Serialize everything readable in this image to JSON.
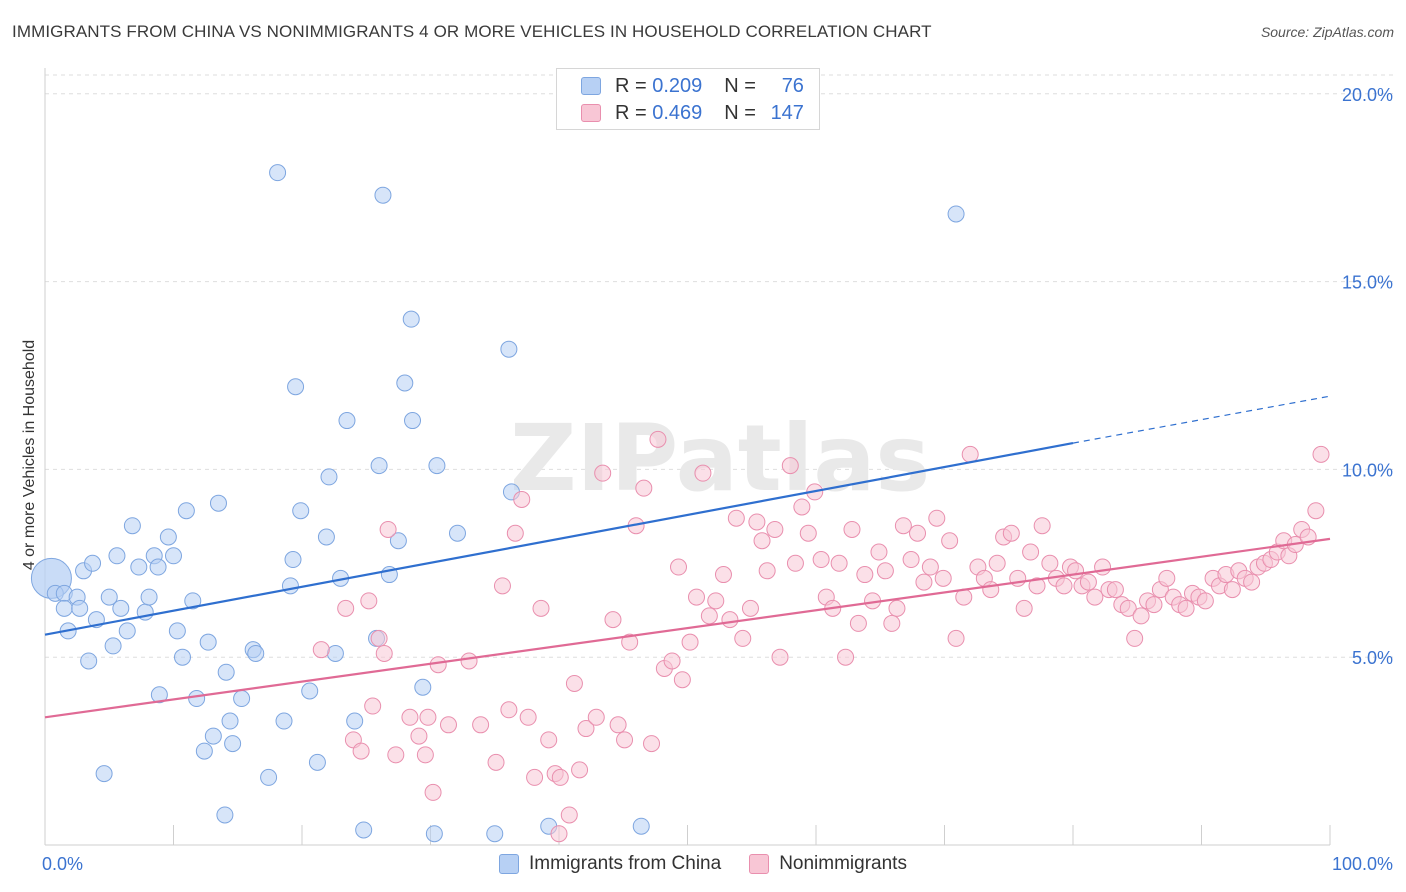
{
  "title": "IMMIGRANTS FROM CHINA VS NONIMMIGRANTS 4 OR MORE VEHICLES IN HOUSEHOLD CORRELATION CHART",
  "source": "Source: ZipAtlas.com",
  "legend": {
    "r_label": "R =",
    "n_label": "N =",
    "rows": [
      {
        "r": "0.209",
        "n": "76",
        "color": "#b7d0f4",
        "border": "#7ea6e0"
      },
      {
        "r": "0.469",
        "n": "147",
        "color": "#f8c6d5",
        "border": "#e98fae"
      }
    ]
  },
  "colors": {
    "blue_fill": "#b7d0f4",
    "blue_edge": "#7ea6e0",
    "blue_line": "#2f6fcf",
    "pink_fill": "#f8c6d5",
    "pink_edge": "#e98fae",
    "pink_line": "#e06a95",
    "axis_label": "#3b73d0",
    "grid": "#dedede"
  },
  "chart_data": {
    "type": "scatter",
    "title": "IMMIGRANTS FROM CHINA VS NONIMMIGRANTS 4 OR MORE VEHICLES IN HOUSEHOLD CORRELATION CHART",
    "xlabel": "",
    "ylabel": "4 or more Vehicles in Household",
    "xlim": [
      0,
      100
    ],
    "ylim": [
      0,
      20.5
    ],
    "x_tick_labels": [
      {
        "value": 0,
        "label": "0.0%"
      },
      {
        "value": 100,
        "label": "100.0%"
      }
    ],
    "y_tick_labels": [
      {
        "value": 5,
        "label": "5.0%"
      },
      {
        "value": 10,
        "label": "10.0%"
      },
      {
        "value": 15,
        "label": "15.0%"
      },
      {
        "value": 20,
        "label": "20.0%"
      }
    ],
    "watermark": "ZIPatlas",
    "series": [
      {
        "name": "Immigrants from China",
        "r": 0.209,
        "n": 76,
        "trend": {
          "x0": 0,
          "y0": 5.6,
          "x1": 80,
          "y1": 10.7,
          "dash_to_x": 100,
          "dash_to_y": 11.95
        },
        "points": [
          {
            "x": 0.5,
            "y": 7.1,
            "big": true
          },
          {
            "x": 0.8,
            "y": 6.7
          },
          {
            "x": 1.5,
            "y": 6.7
          },
          {
            "x": 2.5,
            "y": 6.6
          },
          {
            "x": 1.5,
            "y": 6.3
          },
          {
            "x": 2.7,
            "y": 6.3
          },
          {
            "x": 1.8,
            "y": 5.7
          },
          {
            "x": 3.0,
            "y": 7.3
          },
          {
            "x": 3.7,
            "y": 7.5
          },
          {
            "x": 4.0,
            "y": 6.0
          },
          {
            "x": 3.4,
            "y": 4.9
          },
          {
            "x": 4.6,
            "y": 1.9
          },
          {
            "x": 5.0,
            "y": 6.6
          },
          {
            "x": 5.6,
            "y": 7.7
          },
          {
            "x": 5.9,
            "y": 6.3
          },
          {
            "x": 5.3,
            "y": 5.3
          },
          {
            "x": 6.4,
            "y": 5.7
          },
          {
            "x": 6.8,
            "y": 8.5
          },
          {
            "x": 7.3,
            "y": 7.4
          },
          {
            "x": 7.8,
            "y": 6.2
          },
          {
            "x": 8.1,
            "y": 6.6
          },
          {
            "x": 8.5,
            "y": 7.7
          },
          {
            "x": 8.8,
            "y": 7.4
          },
          {
            "x": 9.6,
            "y": 8.2
          },
          {
            "x": 10.0,
            "y": 7.7
          },
          {
            "x": 10.3,
            "y": 5.7
          },
          {
            "x": 8.9,
            "y": 4.0
          },
          {
            "x": 10.7,
            "y": 5.0
          },
          {
            "x": 11.0,
            "y": 8.9
          },
          {
            "x": 11.5,
            "y": 6.5
          },
          {
            "x": 11.8,
            "y": 3.9
          },
          {
            "x": 12.7,
            "y": 5.4
          },
          {
            "x": 13.1,
            "y": 2.9
          },
          {
            "x": 13.5,
            "y": 9.1
          },
          {
            "x": 14.1,
            "y": 4.6
          },
          {
            "x": 12.4,
            "y": 2.5
          },
          {
            "x": 14.4,
            "y": 3.3
          },
          {
            "x": 14.6,
            "y": 2.7
          },
          {
            "x": 15.3,
            "y": 3.9
          },
          {
            "x": 16.2,
            "y": 5.2
          },
          {
            "x": 16.4,
            "y": 5.1
          },
          {
            "x": 14.0,
            "y": 0.8
          },
          {
            "x": 17.4,
            "y": 1.8
          },
          {
            "x": 18.1,
            "y": 17.9
          },
          {
            "x": 18.6,
            "y": 3.3
          },
          {
            "x": 19.1,
            "y": 6.9
          },
          {
            "x": 19.3,
            "y": 7.6
          },
          {
            "x": 19.5,
            "y": 12.2
          },
          {
            "x": 19.9,
            "y": 8.9
          },
          {
            "x": 20.6,
            "y": 4.1
          },
          {
            "x": 21.2,
            "y": 2.2
          },
          {
            "x": 21.9,
            "y": 8.2
          },
          {
            "x": 22.1,
            "y": 9.8
          },
          {
            "x": 22.6,
            "y": 5.1
          },
          {
            "x": 23.0,
            "y": 7.1
          },
          {
            "x": 23.5,
            "y": 11.3
          },
          {
            "x": 24.1,
            "y": 3.3
          },
          {
            "x": 24.8,
            "y": 0.4
          },
          {
            "x": 25.8,
            "y": 5.5
          },
          {
            "x": 26.0,
            "y": 10.1
          },
          {
            "x": 26.3,
            "y": 17.3
          },
          {
            "x": 26.8,
            "y": 7.2
          },
          {
            "x": 27.5,
            "y": 8.1
          },
          {
            "x": 28.0,
            "y": 12.3
          },
          {
            "x": 28.5,
            "y": 14.0
          },
          {
            "x": 28.6,
            "y": 11.3
          },
          {
            "x": 29.4,
            "y": 4.2
          },
          {
            "x": 30.3,
            "y": 0.3
          },
          {
            "x": 30.5,
            "y": 10.1
          },
          {
            "x": 32.1,
            "y": 8.3
          },
          {
            "x": 35.0,
            "y": 0.3
          },
          {
            "x": 36.1,
            "y": 13.2
          },
          {
            "x": 36.3,
            "y": 9.4
          },
          {
            "x": 39.2,
            "y": 0.5
          },
          {
            "x": 46.4,
            "y": 0.5
          },
          {
            "x": 70.9,
            "y": 16.8
          }
        ]
      },
      {
        "name": "Nonimmigrants",
        "r": 0.469,
        "n": 147,
        "trend": {
          "x0": 0,
          "y0": 3.4,
          "x1": 100,
          "y1": 8.15
        },
        "points": [
          {
            "x": 21.5,
            "y": 5.2
          },
          {
            "x": 23.4,
            "y": 6.3
          },
          {
            "x": 24.0,
            "y": 2.8
          },
          {
            "x": 24.6,
            "y": 2.5
          },
          {
            "x": 25.2,
            "y": 6.5
          },
          {
            "x": 25.5,
            "y": 3.7
          },
          {
            "x": 26.0,
            "y": 5.5
          },
          {
            "x": 26.4,
            "y": 5.1
          },
          {
            "x": 26.7,
            "y": 8.4
          },
          {
            "x": 27.3,
            "y": 2.4
          },
          {
            "x": 28.4,
            "y": 3.4
          },
          {
            "x": 29.1,
            "y": 2.9
          },
          {
            "x": 29.6,
            "y": 2.4
          },
          {
            "x": 30.2,
            "y": 1.4
          },
          {
            "x": 30.6,
            "y": 4.8
          },
          {
            "x": 31.4,
            "y": 3.2
          },
          {
            "x": 33.0,
            "y": 4.9
          },
          {
            "x": 33.9,
            "y": 3.2
          },
          {
            "x": 35.1,
            "y": 2.2
          },
          {
            "x": 35.6,
            "y": 6.9
          },
          {
            "x": 36.1,
            "y": 3.6
          },
          {
            "x": 36.6,
            "y": 8.3
          },
          {
            "x": 37.1,
            "y": 9.2
          },
          {
            "x": 37.6,
            "y": 3.4
          },
          {
            "x": 38.1,
            "y": 1.8
          },
          {
            "x": 38.6,
            "y": 6.3
          },
          {
            "x": 39.2,
            "y": 2.8
          },
          {
            "x": 39.7,
            "y": 1.9
          },
          {
            "x": 40.0,
            "y": 0.3
          },
          {
            "x": 40.1,
            "y": 1.8
          },
          {
            "x": 40.8,
            "y": 0.8
          },
          {
            "x": 41.2,
            "y": 4.3
          },
          {
            "x": 41.6,
            "y": 2.0
          },
          {
            "x": 42.1,
            "y": 3.1
          },
          {
            "x": 42.9,
            "y": 3.4
          },
          {
            "x": 43.4,
            "y": 9.9
          },
          {
            "x": 44.2,
            "y": 6.0
          },
          {
            "x": 44.6,
            "y": 3.2
          },
          {
            "x": 45.1,
            "y": 2.8
          },
          {
            "x": 45.5,
            "y": 5.4
          },
          {
            "x": 46.0,
            "y": 8.5
          },
          {
            "x": 46.6,
            "y": 9.5
          },
          {
            "x": 47.2,
            "y": 2.7
          },
          {
            "x": 47.7,
            "y": 10.8
          },
          {
            "x": 48.2,
            "y": 4.7
          },
          {
            "x": 48.8,
            "y": 4.9
          },
          {
            "x": 49.3,
            "y": 7.4
          },
          {
            "x": 49.6,
            "y": 4.4
          },
          {
            "x": 50.2,
            "y": 5.4
          },
          {
            "x": 50.7,
            "y": 6.6
          },
          {
            "x": 51.2,
            "y": 9.9
          },
          {
            "x": 51.7,
            "y": 6.1
          },
          {
            "x": 52.2,
            "y": 6.5
          },
          {
            "x": 52.8,
            "y": 7.2
          },
          {
            "x": 53.3,
            "y": 6.0
          },
          {
            "x": 53.8,
            "y": 8.7
          },
          {
            "x": 54.3,
            "y": 5.5
          },
          {
            "x": 54.9,
            "y": 6.3
          },
          {
            "x": 55.4,
            "y": 8.6
          },
          {
            "x": 55.8,
            "y": 8.1
          },
          {
            "x": 56.2,
            "y": 7.3
          },
          {
            "x": 56.8,
            "y": 8.4
          },
          {
            "x": 57.2,
            "y": 5.0
          },
          {
            "x": 58.0,
            "y": 10.1
          },
          {
            "x": 58.4,
            "y": 7.5
          },
          {
            "x": 58.9,
            "y": 9.0
          },
          {
            "x": 59.4,
            "y": 8.3
          },
          {
            "x": 59.9,
            "y": 9.4
          },
          {
            "x": 60.4,
            "y": 7.6
          },
          {
            "x": 60.8,
            "y": 6.6
          },
          {
            "x": 61.3,
            "y": 6.3
          },
          {
            "x": 61.8,
            "y": 7.5
          },
          {
            "x": 62.3,
            "y": 5.0
          },
          {
            "x": 62.8,
            "y": 8.4
          },
          {
            "x": 63.3,
            "y": 5.9
          },
          {
            "x": 63.8,
            "y": 7.2
          },
          {
            "x": 64.4,
            "y": 6.5
          },
          {
            "x": 64.9,
            "y": 7.8
          },
          {
            "x": 65.4,
            "y": 7.3
          },
          {
            "x": 65.9,
            "y": 5.9
          },
          {
            "x": 66.3,
            "y": 6.3
          },
          {
            "x": 66.8,
            "y": 8.5
          },
          {
            "x": 67.4,
            "y": 7.6
          },
          {
            "x": 67.9,
            "y": 8.3
          },
          {
            "x": 68.4,
            "y": 7.0
          },
          {
            "x": 68.9,
            "y": 7.4
          },
          {
            "x": 69.4,
            "y": 8.7
          },
          {
            "x": 69.9,
            "y": 7.1
          },
          {
            "x": 70.4,
            "y": 8.1
          },
          {
            "x": 70.9,
            "y": 5.5
          },
          {
            "x": 71.5,
            "y": 6.6
          },
          {
            "x": 72.0,
            "y": 10.4
          },
          {
            "x": 72.6,
            "y": 7.4
          },
          {
            "x": 73.1,
            "y": 7.1
          },
          {
            "x": 73.6,
            "y": 6.8
          },
          {
            "x": 74.1,
            "y": 7.5
          },
          {
            "x": 74.6,
            "y": 8.2
          },
          {
            "x": 75.2,
            "y": 8.3
          },
          {
            "x": 75.7,
            "y": 7.1
          },
          {
            "x": 76.2,
            "y": 6.3
          },
          {
            "x": 76.7,
            "y": 7.8
          },
          {
            "x": 77.2,
            "y": 6.9
          },
          {
            "x": 77.6,
            "y": 8.5
          },
          {
            "x": 78.2,
            "y": 7.5
          },
          {
            "x": 78.7,
            "y": 7.1
          },
          {
            "x": 79.3,
            "y": 6.9
          },
          {
            "x": 79.8,
            "y": 7.4
          },
          {
            "x": 80.2,
            "y": 7.3
          },
          {
            "x": 80.7,
            "y": 6.9
          },
          {
            "x": 81.2,
            "y": 7.0
          },
          {
            "x": 81.7,
            "y": 6.6
          },
          {
            "x": 82.3,
            "y": 7.4
          },
          {
            "x": 82.8,
            "y": 6.8
          },
          {
            "x": 83.3,
            "y": 6.8
          },
          {
            "x": 83.8,
            "y": 6.4
          },
          {
            "x": 84.3,
            "y": 6.3
          },
          {
            "x": 84.8,
            "y": 5.5
          },
          {
            "x": 85.3,
            "y": 6.1
          },
          {
            "x": 85.8,
            "y": 6.5
          },
          {
            "x": 86.3,
            "y": 6.4
          },
          {
            "x": 86.8,
            "y": 6.8
          },
          {
            "x": 87.3,
            "y": 7.1
          },
          {
            "x": 87.8,
            "y": 6.6
          },
          {
            "x": 88.3,
            "y": 6.4
          },
          {
            "x": 88.8,
            "y": 6.3
          },
          {
            "x": 89.3,
            "y": 6.7
          },
          {
            "x": 89.8,
            "y": 6.6
          },
          {
            "x": 90.3,
            "y": 6.5
          },
          {
            "x": 90.9,
            "y": 7.1
          },
          {
            "x": 91.4,
            "y": 6.9
          },
          {
            "x": 91.9,
            "y": 7.2
          },
          {
            "x": 92.4,
            "y": 6.8
          },
          {
            "x": 92.9,
            "y": 7.3
          },
          {
            "x": 93.4,
            "y": 7.1
          },
          {
            "x": 93.9,
            "y": 7.0
          },
          {
            "x": 94.4,
            "y": 7.4
          },
          {
            "x": 94.9,
            "y": 7.5
          },
          {
            "x": 95.4,
            "y": 7.6
          },
          {
            "x": 95.9,
            "y": 7.8
          },
          {
            "x": 96.4,
            "y": 8.1
          },
          {
            "x": 96.8,
            "y": 7.7
          },
          {
            "x": 97.3,
            "y": 8.0
          },
          {
            "x": 97.8,
            "y": 8.4
          },
          {
            "x": 98.3,
            "y": 8.2
          },
          {
            "x": 98.9,
            "y": 8.9
          },
          {
            "x": 99.3,
            "y": 10.4
          },
          {
            "x": 29.8,
            "y": 3.4
          }
        ]
      }
    ]
  }
}
